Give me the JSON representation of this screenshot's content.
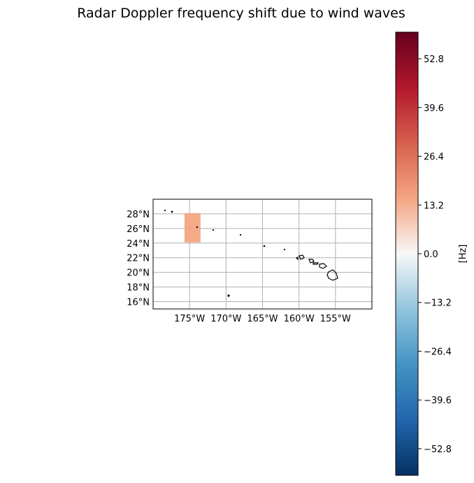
{
  "title": "Radar Doppler frequency shift due to wind waves",
  "map": {
    "lat_ticks": [
      "28°N",
      "26°N",
      "24°N",
      "22°N",
      "20°N",
      "18°N",
      "16°N"
    ],
    "lon_ticks": [
      "175°W",
      "170°W",
      "165°W",
      "160°W",
      "155°W"
    ],
    "extent": {
      "lon_min": -180,
      "lon_max": -150,
      "lat_min": 15,
      "lat_max": 30
    },
    "data_patch": {
      "lon_min": -175.7,
      "lon_max": -173.5,
      "lat_min": 24.1,
      "lat_max": 28.1,
      "value_hz": 20,
      "color": "#f4a582"
    },
    "gridlines": true
  },
  "colorbar": {
    "label": "[Hz]",
    "cmap": "RdBu_r",
    "range": [
      -60,
      60
    ],
    "ticks": [
      "52.8",
      "39.6",
      "26.4",
      "13.2",
      "0.0",
      "−13.2",
      "−26.4",
      "−39.6",
      "−52.8"
    ],
    "tick_values": [
      52.8,
      39.6,
      26.4,
      13.2,
      0.0,
      -13.2,
      -26.4,
      -39.6,
      -52.8
    ]
  }
}
